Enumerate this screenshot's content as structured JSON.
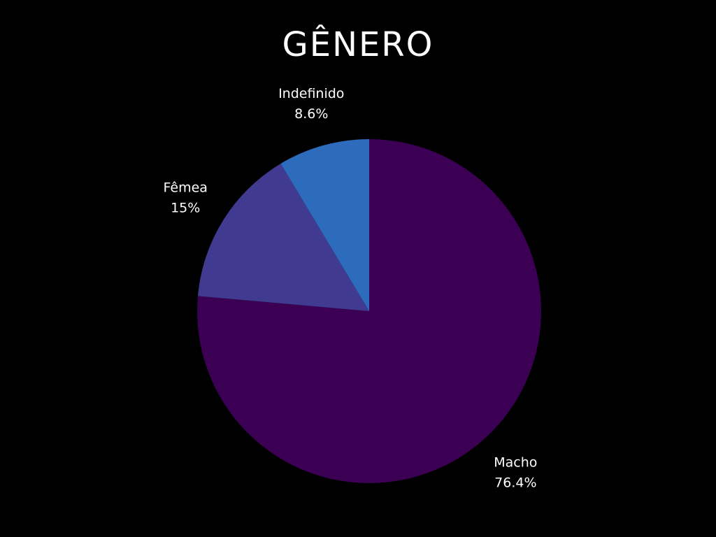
{
  "chart_data": {
    "type": "pie",
    "title": "GÊNERO",
    "slices": [
      {
        "label": "Macho",
        "value": 76.4,
        "value_label": "76.4%",
        "color": "#3b0054"
      },
      {
        "label": "Fêmea",
        "value": 15,
        "value_label": "15%",
        "color": "#403a90"
      },
      {
        "label": "Indefinido",
        "value": 8.6,
        "value_label": "8.6%",
        "color": "#2d6cbd"
      }
    ],
    "start_angle": "12 o'clock",
    "direction": "clockwise",
    "legend": "none",
    "background": "#000000",
    "text_color": "#ffffff"
  }
}
